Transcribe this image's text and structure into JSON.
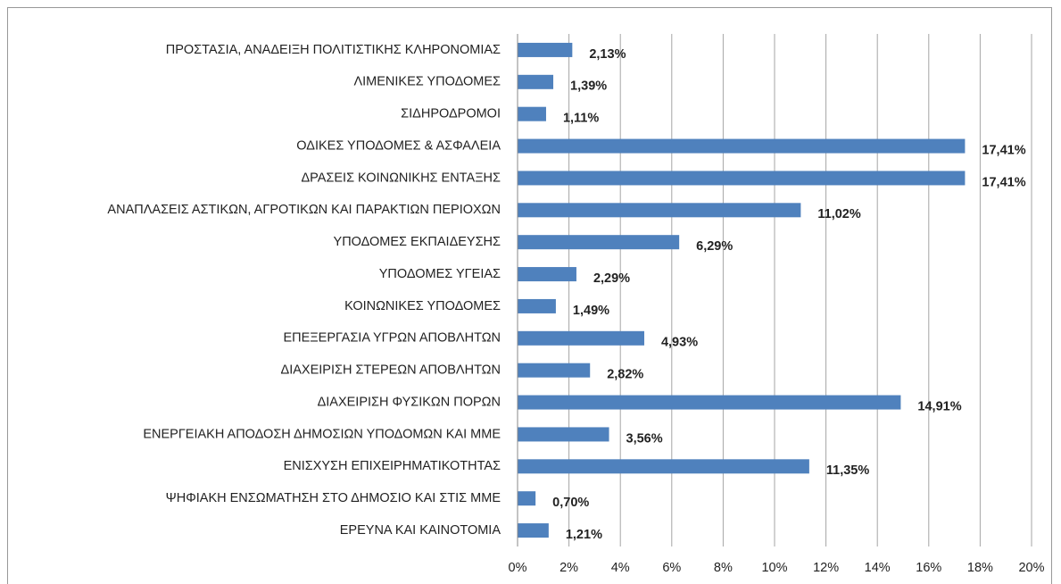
{
  "chart_data": {
    "type": "hbar",
    "categories": [
      "ΠΡΟΣΤΑΣΙΑ, ΑΝΑΔΕΙΞΗ ΠΟΛΙΤΙΣΤΙΚΗΣ ΚΛΗΡΟΝΟΜΙΑΣ",
      "ΛΙΜΕΝΙΚΕΣ ΥΠΟΔΟΜΕΣ",
      "ΣΙΔΗΡΟΔΡΟΜΟΙ",
      "ΟΔΙΚΕΣ ΥΠΟΔΟΜΕΣ & ΑΣΦΑΛΕΙΑ",
      "ΔΡΑΣΕΙΣ ΚΟΙΝΩΝΙΚΗΣ ΕΝΤΑΞΗΣ",
      "ΑΝΑΠΛΑΣΕΙΣ ΑΣΤΙΚΩΝ, ΑΓΡΟΤΙΚΩΝ ΚΑΙ ΠΑΡΑΚΤΙΩΝ ΠΕΡΙΟΧΩΝ",
      "ΥΠΟΔΟΜΕΣ ΕΚΠΑΙΔΕΥΣΗΣ",
      "ΥΠΟΔΟΜΕΣ ΥΓΕΙΑΣ",
      "ΚΟΙΝΩΝΙΚΕΣ ΥΠΟΔΟΜΕΣ",
      "ΕΠΕΞΕΡΓΑΣΙΑ ΥΓΡΩΝ ΑΠΟΒΛΗΤΩΝ",
      "ΔΙΑΧΕΙΡΙΣΗ ΣΤΕΡΕΩΝ ΑΠΟΒΛΗΤΩΝ",
      "ΔΙΑΧΕΙΡΙΣΗ ΦΥΣΙΚΩΝ ΠΟΡΩΝ",
      "ΕΝΕΡΓΕΙΑΚΗ ΑΠΟΔΟΣΗ ΔΗΜΟΣΙΩΝ ΥΠΟΔΟΜΩΝ ΚΑΙ ΜΜΕ",
      "ΕΝΙΣΧΥΣΗ ΕΠΙΧΕΙΡΗΜΑΤΙΚΟΤΗΤΑΣ",
      "ΨΗΦΙΑΚΗ ΕΝΣΩΜΑΤΗΣΗ ΣΤΟ ΔΗΜΟΣΙΟ ΚΑΙ ΣΤΙΣ ΜΜΕ",
      "ΕΡΕΥΝΑ ΚΑΙ ΚΑΙΝΟΤΟΜΙΑ"
    ],
    "values": [
      2.13,
      1.39,
      1.11,
      17.41,
      17.41,
      11.02,
      6.29,
      2.29,
      1.49,
      4.93,
      2.82,
      14.91,
      3.56,
      11.35,
      0.7,
      1.21
    ],
    "value_labels": [
      "2,13%",
      "1,39%",
      "1,11%",
      "17,41%",
      "17,41%",
      "11,02%",
      "6,29%",
      "2,29%",
      "1,49%",
      "4,93%",
      "2,82%",
      "14,91%",
      "3,56%",
      "11,35%",
      "0,70%",
      "1,21%"
    ],
    "color": "#4f81bd",
    "xlim": [
      0,
      20
    ],
    "xticks": [
      {
        "value": 0,
        "label": "0%"
      },
      {
        "value": 2,
        "label": "2%"
      },
      {
        "value": 4,
        "label": "4%"
      },
      {
        "value": 6,
        "label": "6%"
      },
      {
        "value": 8,
        "label": "8%"
      },
      {
        "value": 10,
        "label": "10%"
      },
      {
        "value": 12,
        "label": "12%"
      },
      {
        "value": 14,
        "label": "14%"
      },
      {
        "value": 16,
        "label": "16%"
      },
      {
        "value": 18,
        "label": "18%"
      },
      {
        "value": 20,
        "label": "20%"
      }
    ],
    "grid": true
  }
}
